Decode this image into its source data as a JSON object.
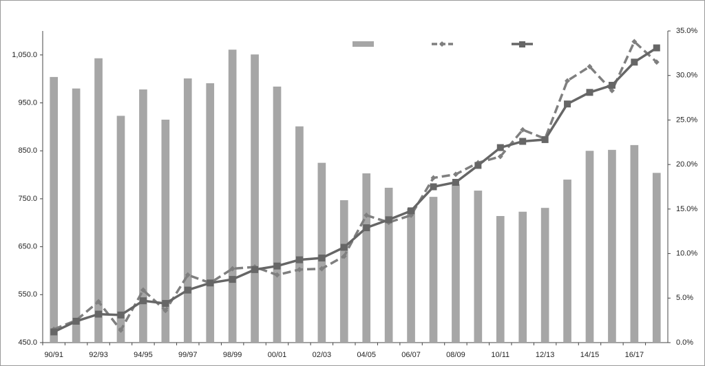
{
  "chart_data": {
    "type": "bar-line",
    "categories": [
      "90/91",
      null,
      "92/93",
      null,
      "94/95",
      null,
      "99/97",
      null,
      "98/99",
      null,
      "00/01",
      null,
      "02/03",
      null,
      "04/05",
      null,
      "06/07",
      null,
      "08/09",
      null,
      "10/11",
      null,
      "12/13",
      null,
      "14/15",
      null,
      "16/17",
      null
    ],
    "ylim": [
      450,
      1100
    ],
    "yticks": [
      {
        "value": 450,
        "label": "450.0"
      },
      {
        "value": 550,
        "label": "550.0"
      },
      {
        "value": 650,
        "label": "650.0"
      },
      {
        "value": 750,
        "label": "750.0"
      },
      {
        "value": 850,
        "label": "850.0"
      },
      {
        "value": 950,
        "label": "950.0"
      },
      {
        "value": 1050,
        "label": "1,050.0"
      }
    ],
    "y2lim": [
      0,
      35
    ],
    "y2ticks": [
      {
        "value": 0,
        "label": "0.0%"
      },
      {
        "value": 5,
        "label": "5.0%"
      },
      {
        "value": 10,
        "label": "10.0%"
      },
      {
        "value": 15,
        "label": "15.0%"
      },
      {
        "value": 20,
        "label": "20.0%"
      },
      {
        "value": 25,
        "label": "25.0%"
      },
      {
        "value": 30,
        "label": "30.0%"
      },
      {
        "value": 35,
        "label": "35.0%"
      }
    ],
    "series": [
      {
        "kind": "bar",
        "color": "#a6a6a6",
        "values": [
          1004,
          980,
          1043,
          923,
          978,
          915,
          1001,
          991,
          1061,
          1051,
          984,
          901,
          825,
          747,
          803,
          773,
          730,
          754,
          780,
          767,
          714,
          723,
          731,
          790,
          850,
          852,
          862,
          804
        ]
      },
      {
        "kind": "dashed-line",
        "axis": "y2",
        "color": "#7f7f7f",
        "values": [
          1.5,
          2.5,
          4.6,
          1.4,
          5.9,
          3.6,
          7.6,
          6.7,
          8.3,
          8.5,
          7.6,
          8.2,
          8.3,
          9.7,
          14.3,
          13.5,
          14.3,
          18.5,
          18.9,
          20.2,
          20.9,
          23.9,
          22.9,
          29.4,
          31.0,
          28.3,
          33.8,
          31.5
        ]
      },
      {
        "kind": "line",
        "axis": "y2",
        "color": "#666666",
        "values": [
          1.2,
          2.4,
          3.2,
          3.1,
          4.7,
          4.4,
          5.9,
          6.7,
          7.1,
          8.2,
          8.6,
          9.3,
          9.5,
          10.7,
          12.9,
          13.8,
          14.8,
          17.5,
          18.0,
          19.9,
          21.9,
          22.6,
          22.8,
          26.8,
          28.1,
          28.9,
          31.5,
          33.1
        ]
      }
    ]
  }
}
